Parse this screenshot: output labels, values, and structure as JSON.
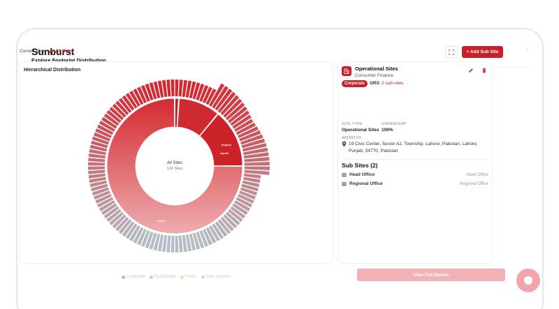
{
  "page": {
    "title": "Sunburst",
    "subtitle": "Explore Footprint  Distribution",
    "current_view_label": "Current View:",
    "current_view_value": "All Sites",
    "add_sub_site_label": "+ Add Sub Site"
  },
  "chart": {
    "panel_title": "Hierarchical Distribution",
    "center_title": "All Sites",
    "center_subtitle": "124 Sites",
    "segment_labels": [
      "Regiona",
      "Operati",
      "Project"
    ],
    "legend": [
      {
        "label": "Corporate",
        "color": "#f4a3a6"
      },
      {
        "label": "Real Estate",
        "color": "#f6c0a0"
      },
      {
        "label": "Funds",
        "color": "#f7dca0"
      },
      {
        "label": "Data Centers",
        "color": "#d9d9d9"
      }
    ]
  },
  "chart_data": {
    "type": "sunburst",
    "title": "Hierarchical Distribution",
    "root": {
      "name": "All Sites",
      "count": 124
    },
    "level1": [
      {
        "name": "Corporate",
        "share": 0.01
      },
      {
        "name": "Regional Offices",
        "share": 0.1
      },
      {
        "name": "Operational Sites",
        "share": 0.14
      },
      {
        "name": "Projects",
        "share": 0.75
      }
    ]
  },
  "details": {
    "site_name": "Operational Sites",
    "site_category": "Consumer Finance",
    "badge": "Corporate",
    "code": "ORS",
    "subsite_count": "2 sub-sites",
    "site_type_label": "SITE TYPE",
    "site_type_value": "Operational Sites",
    "ownership_label": "OWNERSHIP",
    "ownership_value": "100%",
    "address_label": "ADDRESS",
    "address_value": "19 Civic Center, Sector A2, Township, Lahore, Pakistan, Lahore, Punjab, 54770, Pakistan",
    "subsites_title": "Sub Sites (2)",
    "subsites": [
      {
        "name": "Head Office",
        "type": "Head Office"
      },
      {
        "name": "Regional Office",
        "type": "Regional Office"
      }
    ],
    "view_full_label": "View Full Details"
  },
  "colors": {
    "accent": "#c62128",
    "accent_light": "#f1b2b5"
  }
}
